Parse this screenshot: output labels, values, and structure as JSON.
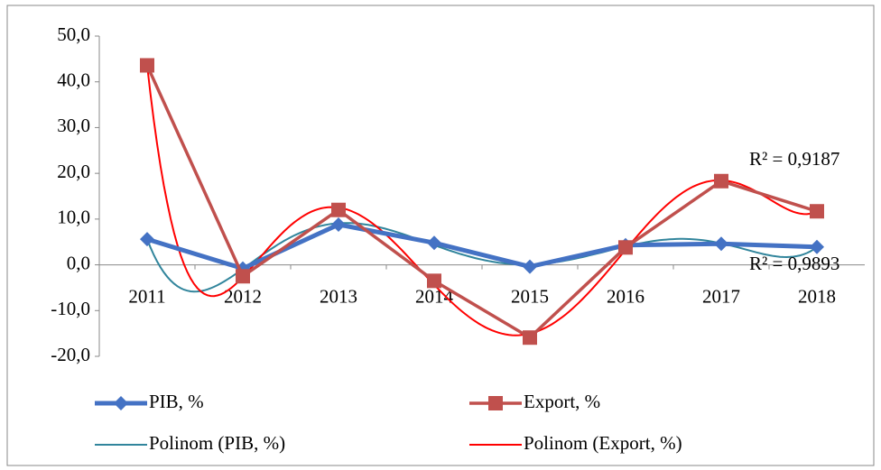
{
  "chart_data": {
    "type": "line",
    "categories": [
      "2011",
      "2012",
      "2013",
      "2014",
      "2015",
      "2016",
      "2017",
      "2018"
    ],
    "series": [
      {
        "name": "PIB, %",
        "color": "#4472c4",
        "marker": "diamond",
        "values": [
          5.6,
          -0.8,
          8.8,
          4.8,
          -0.4,
          4.3,
          4.6,
          3.9
        ],
        "trendline": {
          "name": "Polinom (PIB, %)",
          "type": "polynomial",
          "order": 6,
          "color": "#31859c",
          "r2_label": "R² = 0,9893"
        }
      },
      {
        "name": "Export, %",
        "color": "#c0504d",
        "marker": "square",
        "values": [
          43.6,
          -2.5,
          12.0,
          -3.5,
          -15.9,
          3.8,
          18.3,
          11.7
        ],
        "trendline": {
          "name": "Polinom (Export, %)",
          "type": "polynomial",
          "order": 6,
          "color": "#ff0000",
          "r2_label": "R² = 0,9187"
        }
      }
    ],
    "ylim": [
      -20,
      50
    ],
    "yticks": [
      {
        "value": -20,
        "label": "-20,0"
      },
      {
        "value": -10,
        "label": "-10,0"
      },
      {
        "value": 0,
        "label": "0,0"
      },
      {
        "value": 10,
        "label": "10,0"
      },
      {
        "value": 20,
        "label": "20,0"
      },
      {
        "value": 30,
        "label": "30,0"
      },
      {
        "value": 40,
        "label": "40,0"
      },
      {
        "value": 50,
        "label": "50,0"
      }
    ],
    "grid": false,
    "legend": "bottom"
  }
}
